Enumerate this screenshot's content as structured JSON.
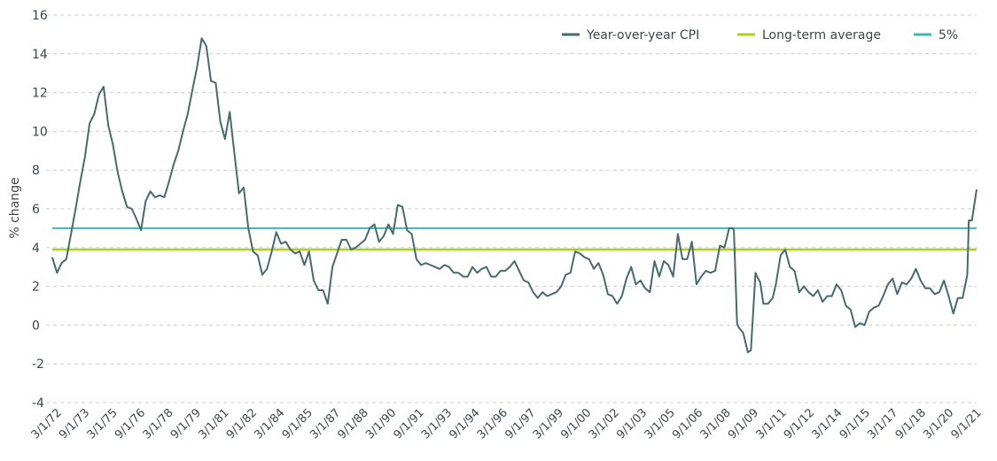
{
  "chart_data": {
    "type": "line",
    "title": "",
    "xlabel": "",
    "ylabel": "% change",
    "ylim": [
      -4,
      16
    ],
    "yticks": [
      16,
      14,
      12,
      10,
      8,
      6,
      4,
      2,
      0,
      -2,
      -4
    ],
    "grid": "horizontal dashed",
    "legend_position": "top-right",
    "x_tick_labels": [
      "3/1/72",
      "9/1/73",
      "3/1/75",
      "9/1/76",
      "3/1/78",
      "9/1/79",
      "3/1/81",
      "9/1/82",
      "3/1/84",
      "9/1/85",
      "3/1/87",
      "9/1/88",
      "3/1/90",
      "9/1/91",
      "3/1/93",
      "9/1/94",
      "3/1/96",
      "9/1/97",
      "3/1/99",
      "9/1/00",
      "3/1/02",
      "9/1/03",
      "3/1/05",
      "9/1/06",
      "3/1/08",
      "9/1/09",
      "3/1/11",
      "9/1/12",
      "3/1/14",
      "9/1/15",
      "3/1/17",
      "9/1/18",
      "3/1/20",
      "9/1/21"
    ],
    "x_range": [
      1972.17,
      2021.67
    ],
    "series": [
      {
        "name": "Year-over-year CPI",
        "color": "#476a6f",
        "points": [
          [
            1972.17,
            3.5
          ],
          [
            1972.42,
            2.7
          ],
          [
            1972.67,
            3.2
          ],
          [
            1972.92,
            3.4
          ],
          [
            1973.17,
            4.7
          ],
          [
            1973.42,
            6.0
          ],
          [
            1973.67,
            7.4
          ],
          [
            1973.92,
            8.7
          ],
          [
            1974.17,
            10.4
          ],
          [
            1974.42,
            10.9
          ],
          [
            1974.67,
            11.9
          ],
          [
            1974.92,
            12.3
          ],
          [
            1975.17,
            10.3
          ],
          [
            1975.42,
            9.3
          ],
          [
            1975.67,
            7.9
          ],
          [
            1975.92,
            6.9
          ],
          [
            1976.17,
            6.1
          ],
          [
            1976.42,
            6.0
          ],
          [
            1976.67,
            5.5
          ],
          [
            1976.92,
            4.9
          ],
          [
            1977.17,
            6.4
          ],
          [
            1977.42,
            6.9
          ],
          [
            1977.67,
            6.6
          ],
          [
            1977.92,
            6.7
          ],
          [
            1978.17,
            6.6
          ],
          [
            1978.42,
            7.4
          ],
          [
            1978.67,
            8.3
          ],
          [
            1978.92,
            9.0
          ],
          [
            1979.17,
            10.0
          ],
          [
            1979.42,
            10.9
          ],
          [
            1979.67,
            12.1
          ],
          [
            1979.92,
            13.3
          ],
          [
            1980.17,
            14.8
          ],
          [
            1980.42,
            14.4
          ],
          [
            1980.67,
            12.6
          ],
          [
            1980.92,
            12.5
          ],
          [
            1981.17,
            10.5
          ],
          [
            1981.42,
            9.6
          ],
          [
            1981.67,
            11.0
          ],
          [
            1981.92,
            8.9
          ],
          [
            1982.17,
            6.8
          ],
          [
            1982.42,
            7.1
          ],
          [
            1982.67,
            5.0
          ],
          [
            1982.92,
            3.8
          ],
          [
            1983.17,
            3.6
          ],
          [
            1983.42,
            2.6
          ],
          [
            1983.67,
            2.9
          ],
          [
            1983.92,
            3.8
          ],
          [
            1984.17,
            4.8
          ],
          [
            1984.42,
            4.2
          ],
          [
            1984.67,
            4.3
          ],
          [
            1984.92,
            3.9
          ],
          [
            1985.17,
            3.7
          ],
          [
            1985.42,
            3.8
          ],
          [
            1985.67,
            3.1
          ],
          [
            1985.92,
            3.8
          ],
          [
            1986.17,
            2.3
          ],
          [
            1986.42,
            1.8
          ],
          [
            1986.67,
            1.8
          ],
          [
            1986.92,
            1.1
          ],
          [
            1987.17,
            3.0
          ],
          [
            1987.42,
            3.7
          ],
          [
            1987.67,
            4.4
          ],
          [
            1987.92,
            4.4
          ],
          [
            1988.17,
            3.9
          ],
          [
            1988.42,
            4.0
          ],
          [
            1988.67,
            4.2
          ],
          [
            1988.92,
            4.4
          ],
          [
            1989.17,
            5.0
          ],
          [
            1989.42,
            5.2
          ],
          [
            1989.67,
            4.3
          ],
          [
            1989.92,
            4.6
          ],
          [
            1990.17,
            5.2
          ],
          [
            1990.42,
            4.7
          ],
          [
            1990.67,
            6.2
          ],
          [
            1990.92,
            6.1
          ],
          [
            1991.17,
            4.9
          ],
          [
            1991.42,
            4.7
          ],
          [
            1991.67,
            3.4
          ],
          [
            1991.92,
            3.1
          ],
          [
            1992.17,
            3.2
          ],
          [
            1992.42,
            3.1
          ],
          [
            1992.67,
            3.0
          ],
          [
            1992.92,
            2.9
          ],
          [
            1993.17,
            3.1
          ],
          [
            1993.42,
            3.0
          ],
          [
            1993.67,
            2.7
          ],
          [
            1993.92,
            2.7
          ],
          [
            1994.17,
            2.5
          ],
          [
            1994.42,
            2.5
          ],
          [
            1994.67,
            3.0
          ],
          [
            1994.92,
            2.7
          ],
          [
            1995.17,
            2.9
          ],
          [
            1995.42,
            3.0
          ],
          [
            1995.67,
            2.5
          ],
          [
            1995.92,
            2.5
          ],
          [
            1996.17,
            2.8
          ],
          [
            1996.42,
            2.8
          ],
          [
            1996.67,
            3.0
          ],
          [
            1996.92,
            3.3
          ],
          [
            1997.17,
            2.8
          ],
          [
            1997.42,
            2.3
          ],
          [
            1997.67,
            2.2
          ],
          [
            1997.92,
            1.7
          ],
          [
            1998.17,
            1.4
          ],
          [
            1998.42,
            1.7
          ],
          [
            1998.67,
            1.5
          ],
          [
            1998.92,
            1.6
          ],
          [
            1999.17,
            1.7
          ],
          [
            1999.42,
            2.0
          ],
          [
            1999.67,
            2.6
          ],
          [
            1999.92,
            2.7
          ],
          [
            2000.17,
            3.8
          ],
          [
            2000.42,
            3.7
          ],
          [
            2000.67,
            3.5
          ],
          [
            2000.92,
            3.4
          ],
          [
            2001.17,
            2.9
          ],
          [
            2001.42,
            3.2
          ],
          [
            2001.67,
            2.6
          ],
          [
            2001.92,
            1.6
          ],
          [
            2002.17,
            1.5
          ],
          [
            2002.42,
            1.1
          ],
          [
            2002.67,
            1.5
          ],
          [
            2002.92,
            2.4
          ],
          [
            2003.17,
            3.0
          ],
          [
            2003.42,
            2.1
          ],
          [
            2003.67,
            2.3
          ],
          [
            2003.92,
            1.9
          ],
          [
            2004.17,
            1.7
          ],
          [
            2004.42,
            3.3
          ],
          [
            2004.67,
            2.5
          ],
          [
            2004.92,
            3.3
          ],
          [
            2005.17,
            3.1
          ],
          [
            2005.42,
            2.5
          ],
          [
            2005.67,
            4.7
          ],
          [
            2005.92,
            3.4
          ],
          [
            2006.17,
            3.4
          ],
          [
            2006.42,
            4.3
          ],
          [
            2006.67,
            2.1
          ],
          [
            2006.92,
            2.5
          ],
          [
            2007.17,
            2.8
          ],
          [
            2007.42,
            2.7
          ],
          [
            2007.67,
            2.8
          ],
          [
            2007.92,
            4.1
          ],
          [
            2008.17,
            4.0
          ],
          [
            2008.42,
            5.0
          ],
          [
            2008.59,
            5.0
          ],
          [
            2008.67,
            4.9
          ],
          [
            2008.84,
            0.1
          ],
          [
            2008.92,
            -0.1
          ],
          [
            2009.17,
            -0.4
          ],
          [
            2009.42,
            -1.4
          ],
          [
            2009.58,
            -1.3
          ],
          [
            2009.83,
            2.7
          ],
          [
            2009.92,
            2.5
          ],
          [
            2010.08,
            2.2
          ],
          [
            2010.25,
            1.1
          ],
          [
            2010.5,
            1.1
          ],
          [
            2010.75,
            1.4
          ],
          [
            2010.92,
            2.1
          ],
          [
            2011.17,
            3.6
          ],
          [
            2011.42,
            3.9
          ],
          [
            2011.67,
            3.0
          ],
          [
            2011.92,
            2.8
          ],
          [
            2012.17,
            1.7
          ],
          [
            2012.42,
            2.0
          ],
          [
            2012.67,
            1.7
          ],
          [
            2012.92,
            1.5
          ],
          [
            2013.17,
            1.8
          ],
          [
            2013.42,
            1.2
          ],
          [
            2013.67,
            1.5
          ],
          [
            2013.92,
            1.5
          ],
          [
            2014.17,
            2.1
          ],
          [
            2014.42,
            1.8
          ],
          [
            2014.67,
            1.0
          ],
          [
            2014.92,
            0.8
          ],
          [
            2015.17,
            -0.1
          ],
          [
            2015.42,
            0.1
          ],
          [
            2015.67,
            0.0
          ],
          [
            2015.92,
            0.7
          ],
          [
            2016.17,
            0.9
          ],
          [
            2016.42,
            1.0
          ],
          [
            2016.67,
            1.5
          ],
          [
            2016.92,
            2.1
          ],
          [
            2017.17,
            2.4
          ],
          [
            2017.42,
            1.6
          ],
          [
            2017.67,
            2.2
          ],
          [
            2017.92,
            2.1
          ],
          [
            2018.17,
            2.4
          ],
          [
            2018.42,
            2.9
          ],
          [
            2018.67,
            2.3
          ],
          [
            2018.92,
            1.9
          ],
          [
            2019.17,
            1.9
          ],
          [
            2019.42,
            1.6
          ],
          [
            2019.67,
            1.7
          ],
          [
            2019.92,
            2.3
          ],
          [
            2020.17,
            1.5
          ],
          [
            2020.42,
            0.6
          ],
          [
            2020.67,
            1.4
          ],
          [
            2020.92,
            1.4
          ],
          [
            2021.17,
            2.6
          ],
          [
            2021.25,
            5.4
          ],
          [
            2021.42,
            5.4
          ],
          [
            2021.67,
            7.0
          ]
        ]
      },
      {
        "name": "Long-term average",
        "color": "#a9d11b",
        "value": 3.9
      },
      {
        "name": "5%",
        "color": "#3cb8bb",
        "value": 5.0
      }
    ]
  }
}
